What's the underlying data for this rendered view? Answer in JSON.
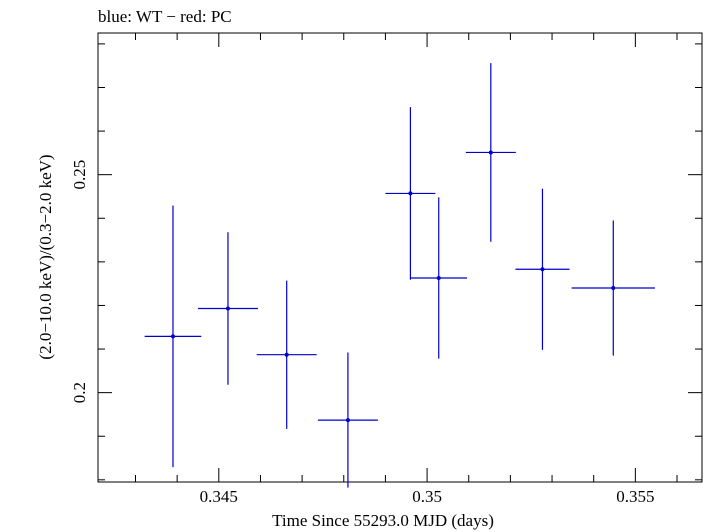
{
  "chart_data": {
    "type": "scatter",
    "title": "blue: WT − red: PC",
    "xlabel": "Time Since 55293.0 MJD (days)",
    "ylabel": "(2.0−10.0 keV)/(0.3−2.0 keV)",
    "xlim": [
      0.3421,
      0.3566
    ],
    "ylim": [
      0.1795,
      0.2825
    ],
    "x_ticks": [
      {
        "value": 0.345,
        "label": "0.345"
      },
      {
        "value": 0.35,
        "label": "0.35"
      },
      {
        "value": 0.355,
        "label": "0.355"
      }
    ],
    "y_ticks": [
      {
        "value": 0.2,
        "label": "0.2"
      },
      {
        "value": 0.25,
        "label": "0.25"
      }
    ],
    "grid": false,
    "series": [
      {
        "color": "#0000cc",
        "points": [
          {
            "x": 0.3439,
            "y": 0.2129,
            "xerr": 0.00068,
            "yerr": 0.03
          },
          {
            "x": 0.34522,
            "y": 0.2193,
            "xerr": 0.00072,
            "yerr": 0.0175
          },
          {
            "x": 0.34663,
            "y": 0.2087,
            "xerr": 0.00072,
            "yerr": 0.017
          },
          {
            "x": 0.3481,
            "y": 0.1937,
            "xerr": 0.00072,
            "yerr": 0.0155
          },
          {
            "x": 0.3496,
            "y": 0.2457,
            "xerr": 0.0006,
            "yerr": 0.0198
          },
          {
            "x": 0.35028,
            "y": 0.2263,
            "xerr": 0.00068,
            "yerr": 0.0185
          },
          {
            "x": 0.35153,
            "y": 0.2551,
            "xerr": 0.0006,
            "yerr": 0.0205
          },
          {
            "x": 0.35277,
            "y": 0.2283,
            "xerr": 0.00065,
            "yerr": 0.0185
          },
          {
            "x": 0.35447,
            "y": 0.224,
            "xerr": 0.001,
            "yerr": 0.0155
          }
        ]
      }
    ]
  }
}
